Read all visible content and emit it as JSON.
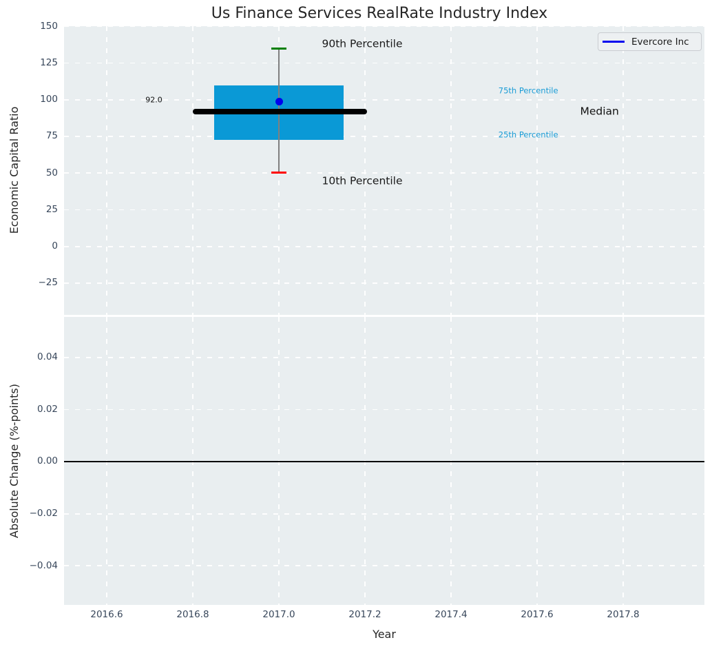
{
  "chart_data": {
    "type": "box",
    "title": "Us Finance Services RealRate Industry Index",
    "xlabel": "Year",
    "grid": "white-dashed",
    "x": {
      "lim": [
        2016.5008,
        2017.9888
      ],
      "ticks": [
        2016.6,
        2016.8,
        2017.0,
        2017.2,
        2017.4,
        2017.6,
        2017.8
      ],
      "tick_labels": [
        "2016.6",
        "2016.8",
        "2017.0",
        "2017.2",
        "2017.4",
        "2017.6",
        "2017.8"
      ]
    },
    "colors": {
      "figure_bg": "#ffffff",
      "axes_bg": "#e9eef0",
      "grid": "#ffffff",
      "tick_text": "#37465a",
      "box_fill": "#0a99d6",
      "whisker": "#7f7f7f",
      "cap_90th": "#007f00",
      "cap_10th": "#ff0000",
      "median_line": "#000000",
      "point": "#0000ee",
      "cyan_text": "#1a9cd6"
    },
    "legend": {
      "label": "Evercore Inc",
      "line_color": "#0000ee",
      "position": "upper right"
    },
    "panels": [
      {
        "ylabel": "Economic Capital Ratio",
        "ylim": [
          -46.6,
          150.1
        ],
        "yticks": [
          150,
          125,
          100,
          75,
          50,
          25,
          0,
          -25
        ],
        "ytick_labels": [
          "150",
          "125",
          "100",
          "75",
          "50",
          "25",
          "0",
          "−25"
        ],
        "box": {
          "x_center": 2017.0,
          "x_left": 2016.85,
          "x_right": 2017.15,
          "p10": 50.5,
          "p25": 72.5,
          "median": 92.0,
          "p75": 109.5,
          "p90": 135.0,
          "median_span": [
            2016.8,
            2017.205
          ]
        },
        "evercore": {
          "x": 2017.0,
          "y": 98.5
        },
        "annotations": [
          {
            "name": "annotation-90th-percentile",
            "text": "90th Percentile",
            "x": 2017.1,
            "y": 138.0,
            "color": "#1a1a1a",
            "size": 15.5,
            "align": "left"
          },
          {
            "name": "annotation-10th-percentile",
            "text": "10th Percentile",
            "x": 2017.1,
            "y": 44.4,
            "color": "#1a1a1a",
            "size": 15.5,
            "align": "left"
          },
          {
            "name": "annotation-75th-percentile",
            "text": "75th Percentile",
            "x": 2017.51,
            "y": 106.0,
            "color": "#1a9cd6",
            "size": 11.5,
            "align": "left"
          },
          {
            "name": "annotation-25th-percentile",
            "text": "25th Percentile",
            "x": 2017.51,
            "y": 76.0,
            "color": "#1a9cd6",
            "size": 11.5,
            "align": "left"
          },
          {
            "name": "annotation-median",
            "text": "Median",
            "x": 2017.7,
            "y": 92.0,
            "color": "#111111",
            "size": 15.5,
            "align": "left"
          },
          {
            "name": "annotation-median-value",
            "text": "92.0",
            "x": 2016.69,
            "y": 100.0,
            "color": "#111111",
            "size": 11,
            "align": "left"
          }
        ]
      },
      {
        "ylabel": "Absolute Change (%-points)",
        "ylim": [
          -0.055,
          0.0556
        ],
        "yticks": [
          0.04,
          0.02,
          0,
          -0.02,
          -0.04
        ],
        "ytick_labels": [
          "0.04",
          "0.02",
          "0.00",
          "−0.02",
          "−0.04"
        ],
        "zero_line": 0.0
      }
    ]
  }
}
